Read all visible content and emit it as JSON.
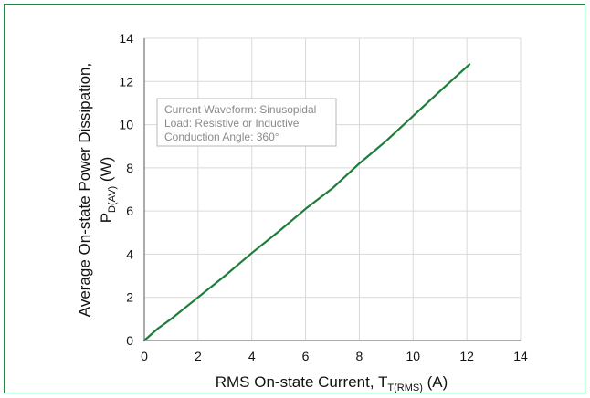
{
  "chart_data": {
    "type": "line",
    "title": "",
    "xlabel": {
      "main": "RMS On-state Current, T",
      "sub": "T(RMS)",
      "unit": " (A)"
    },
    "ylabel": {
      "line1": "Average On-state Power Dissipation,",
      "main": "P",
      "sub": "D(AV)",
      "unit": " (W)"
    },
    "xlim": [
      0,
      14
    ],
    "ylim": [
      0,
      14
    ],
    "xticks": [
      0,
      2,
      4,
      6,
      8,
      10,
      12,
      14
    ],
    "yticks": [
      0,
      2,
      4,
      6,
      8,
      10,
      12,
      14
    ],
    "grid": true,
    "series": [
      {
        "color": "#1e7d3a",
        "x": [
          0,
          0.5,
          1,
          2,
          3,
          4,
          5,
          6,
          7,
          8,
          9,
          10,
          11,
          12.1
        ],
        "y": [
          0,
          0.55,
          1.0,
          2.0,
          3.0,
          4.05,
          5.05,
          6.1,
          7.05,
          8.2,
          9.25,
          10.4,
          11.55,
          12.8
        ]
      }
    ],
    "annotations": [
      "Current Waveform: Sinusopidal",
      "Load: Resistive or Inductive",
      "Conduction Angle: 360°"
    ]
  },
  "colors": {
    "frame": "#1f8a4c",
    "line": "#1e7d3a",
    "grid": "#d9d9d9",
    "axis": "#555555"
  }
}
